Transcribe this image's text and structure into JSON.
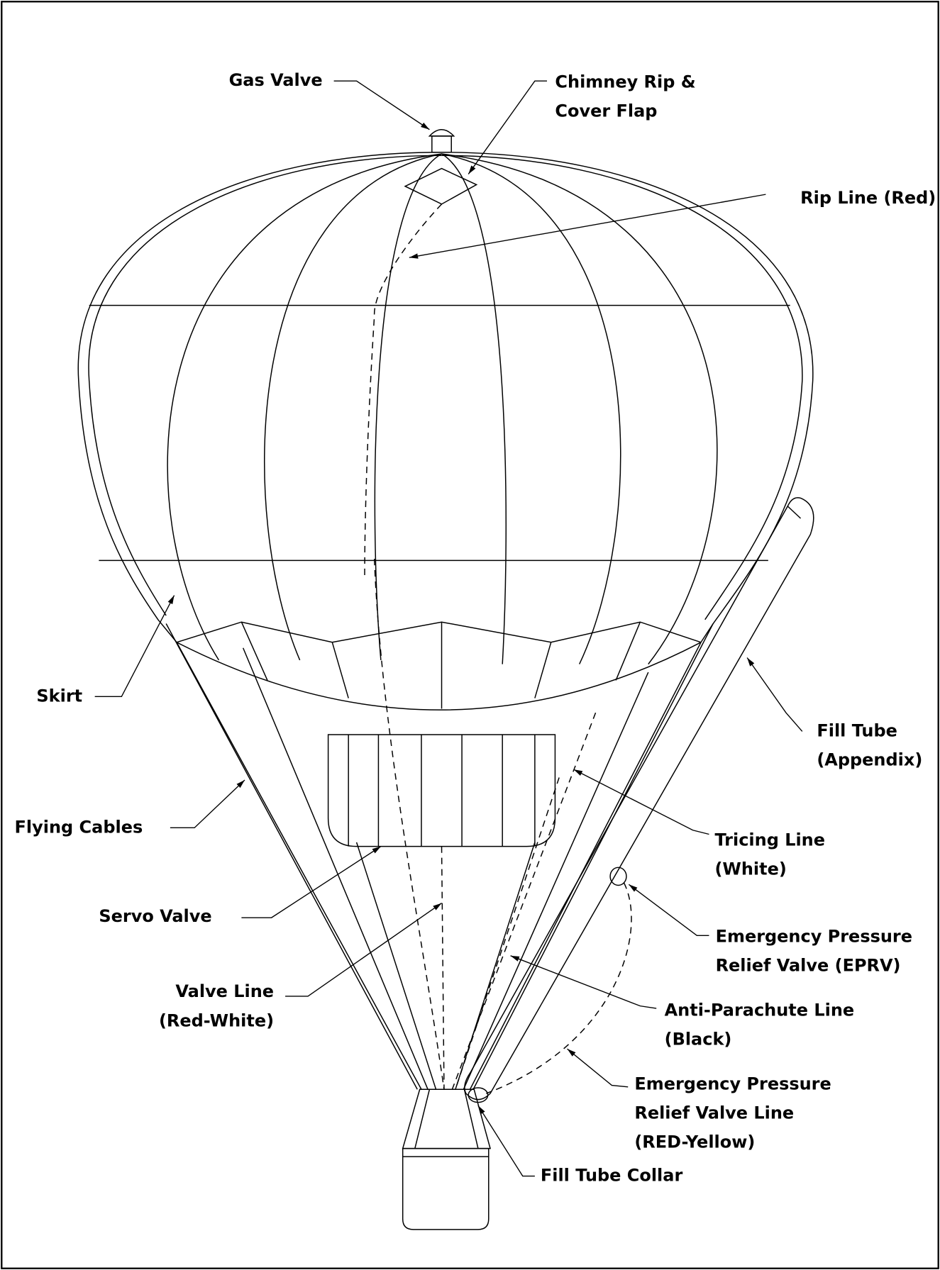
{
  "labels": [
    {
      "lines": [
        "Gas Valve"
      ]
    },
    {
      "lines": [
        "Chimney Rip &",
        "Cover Flap"
      ]
    },
    {
      "lines": [
        "Rip Line (Red)"
      ]
    },
    {
      "lines": [
        "Skirt"
      ]
    },
    {
      "lines": [
        "Fill Tube",
        "(Appendix)"
      ]
    },
    {
      "lines": [
        "Flying Cables"
      ]
    },
    {
      "lines": [
        "Tricing Line",
        "(White)"
      ]
    },
    {
      "lines": [
        "Servo Valve"
      ]
    },
    {
      "lines": [
        "Emergency Pressure",
        "Relief Valve (EPRV)"
      ]
    },
    {
      "lines": [
        "Valve Line",
        "(Red-White)"
      ]
    },
    {
      "lines": [
        "Anti-Parachute Line",
        "(Black)"
      ]
    },
    {
      "lines": [
        "Emergency Pressure",
        "Relief Valve Line",
        "(RED-Yellow)"
      ]
    },
    {
      "lines": [
        "Fill Tube Collar"
      ]
    }
  ]
}
